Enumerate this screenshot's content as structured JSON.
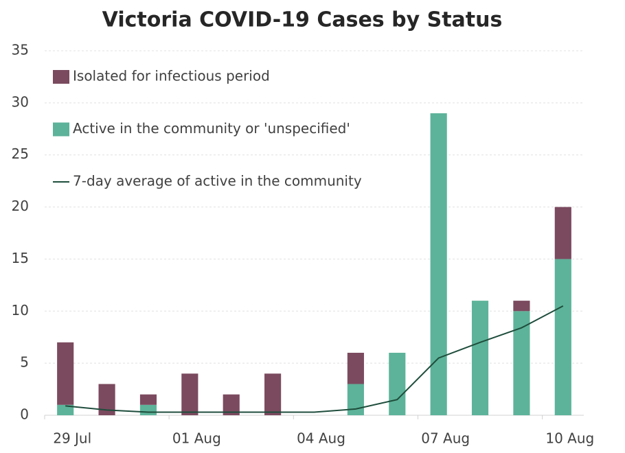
{
  "chart_data": {
    "type": "bar",
    "title": "Victoria COVID-19 Cases by Status",
    "categories": [
      "29 Jul",
      null,
      null,
      "01 Aug",
      null,
      null,
      "04 Aug",
      null,
      null,
      "07 Aug",
      null,
      null,
      "10 Aug"
    ],
    "series": [
      {
        "name": "Isolated for infectious period",
        "type": "bar",
        "color": "#7b4a5e",
        "values": [
          6,
          3,
          1,
          4,
          2,
          4,
          0,
          3,
          0,
          0,
          0,
          1,
          5
        ]
      },
      {
        "name": "Active in the community or 'unspecified'",
        "type": "bar",
        "color": "#5db399",
        "values": [
          1,
          0,
          1,
          0,
          0,
          0,
          0,
          3,
          6,
          29,
          11,
          10,
          15
        ]
      },
      {
        "name": "7-day average of active in the community",
        "type": "line",
        "color": "#1e4d3c",
        "values": [
          0.9,
          0.5,
          0.3,
          0.3,
          0.3,
          0.3,
          0.3,
          0.6,
          1.5,
          5.5,
          7.0,
          8.4,
          10.5
        ]
      }
    ],
    "ylim": [
      0,
      35
    ],
    "yticks": [
      0,
      5,
      10,
      15,
      20,
      25,
      30,
      35
    ],
    "grid": true,
    "legend": "top-left"
  }
}
